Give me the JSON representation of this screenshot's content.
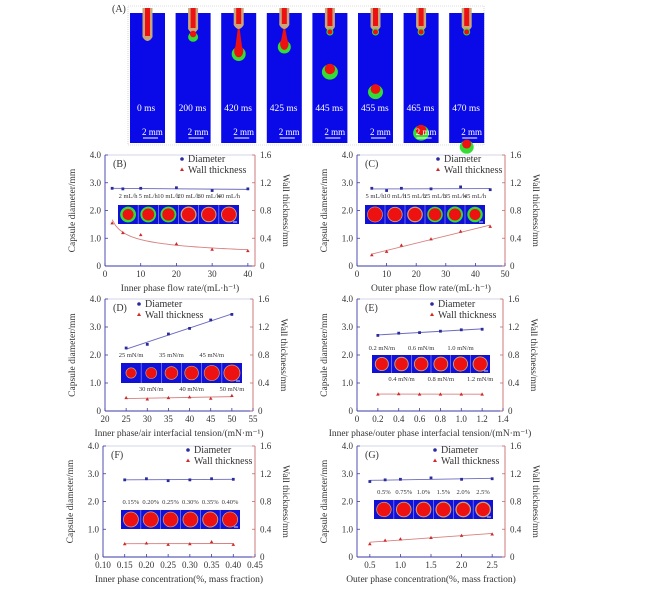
{
  "panel_a": {
    "label": "(A)",
    "frame_color": "#0a0ae8",
    "frames": [
      {
        "time": "0 ms",
        "scale": "2 mm"
      },
      {
        "time": "200 ms",
        "scale": "2 mm"
      },
      {
        "time": "420 ms",
        "scale": "2 mm"
      },
      {
        "time": "425 ms",
        "scale": "2 mm"
      },
      {
        "time": "445 ms",
        "scale": "2 mm"
      },
      {
        "time": "455 ms",
        "scale": "2 mm"
      },
      {
        "time": "465 ms",
        "scale": "2 mm"
      },
      {
        "time": "470 ms",
        "scale": "2 mm"
      }
    ]
  },
  "colors": {
    "diameter": "#2b2b9c",
    "diameter_line": "#6a6ac0",
    "wall": "#d02a2a",
    "wall_line": "#d88080",
    "left_axis": "#3a3aa8",
    "right_axis": "#c86a6a",
    "inset_bg": "#1010d8",
    "core": "#ee1111",
    "shell_green": "#33dd33",
    "shell_beige": "#c9a67a"
  },
  "chart_data": [
    {
      "id": "B",
      "type": "scatter",
      "panel_label": "(B)",
      "xlabel": "Inner phase flow rate/(mL·h⁻¹)",
      "ylabel": "Capsule diameter/mm",
      "y2label": "Wall thickness/mm",
      "xlim": [
        0,
        42
      ],
      "xticks": [
        "0",
        "10",
        "20",
        "30",
        "40"
      ],
      "xtick_values": [
        0,
        10,
        20,
        30,
        40
      ],
      "ylim": [
        0,
        4
      ],
      "yticks": [
        "0",
        "1.0",
        "2.0",
        "3.0",
        "4.0"
      ],
      "y2lim": [
        0,
        1.6
      ],
      "y2ticks": [
        "0",
        "0.4",
        "0.8",
        "1.2",
        "1.6"
      ],
      "legend": [
        "Diameter",
        "Wall thickness"
      ],
      "legend_position": "top-right",
      "x": [
        2,
        5,
        10,
        20,
        30,
        40
      ],
      "series": [
        {
          "name": "Diameter",
          "axis": "left",
          "values": [
            2.8,
            2.78,
            2.8,
            2.82,
            2.72,
            2.78
          ],
          "trend": "linear"
        },
        {
          "name": "Wall thickness",
          "axis": "right",
          "values": [
            0.62,
            0.48,
            0.45,
            0.32,
            0.24,
            0.22
          ],
          "trend": "power"
        }
      ],
      "inset_labels_top": [
        "2 mL/h",
        "5 mL/h",
        "10 mL/h",
        "20 mL/h",
        "30 mL/h",
        "40 mL/h"
      ],
      "inset_labels_bottom": []
    },
    {
      "id": "C",
      "type": "scatter",
      "panel_label": "(C)",
      "xlabel": "Outer phase flow rate/(mL·h⁻¹)",
      "ylabel": "Capsule diameter/mm",
      "y2label": "Wall thickness/mm",
      "xlim": [
        0,
        50
      ],
      "xticks": [
        "0",
        "10",
        "20",
        "30",
        "40",
        "50"
      ],
      "xtick_values": [
        0,
        10,
        20,
        30,
        40,
        50
      ],
      "ylim": [
        0,
        4
      ],
      "yticks": [
        "0",
        "1.0",
        "2.0",
        "3.0",
        "4.0"
      ],
      "y2lim": [
        0,
        1.6
      ],
      "y2ticks": [
        "0",
        "0.4",
        "0.8",
        "1.2",
        "1.6"
      ],
      "legend": [
        "Diameter",
        "Wall thickness"
      ],
      "legend_position": "top-right",
      "x": [
        5,
        10,
        15,
        25,
        35,
        45
      ],
      "series": [
        {
          "name": "Diameter",
          "axis": "left",
          "values": [
            2.8,
            2.72,
            2.8,
            2.78,
            2.85,
            2.75
          ],
          "trend": "linear"
        },
        {
          "name": "Wall thickness",
          "axis": "right",
          "values": [
            0.16,
            0.21,
            0.3,
            0.39,
            0.5,
            0.57
          ],
          "trend": "linear"
        }
      ],
      "inset_labels_top": [
        "5 mL/h",
        "10 mL/h",
        "15 mL/h",
        "25 mL/h",
        "35 mL/h",
        "45 mL/h"
      ],
      "inset_labels_bottom": []
    },
    {
      "id": "D",
      "type": "scatter",
      "panel_label": "(D)",
      "xlabel": "Inner phase/air interfacial tension/(mN·m⁻¹)",
      "ylabel": "Capsule diameter/mm",
      "y2label": "Wall thickness/mm",
      "xlim": [
        20,
        55
      ],
      "xticks": [
        "20",
        "25",
        "30",
        "35",
        "40",
        "45",
        "50",
        "55"
      ],
      "xtick_values": [
        20,
        25,
        30,
        35,
        40,
        45,
        50,
        55
      ],
      "ylim": [
        0,
        4
      ],
      "yticks": [
        "0",
        "1.0",
        "2.0",
        "3.0",
        "4.0"
      ],
      "y2lim": [
        0,
        1.6
      ],
      "y2ticks": [
        "0",
        "0.4",
        "0.8",
        "1.2",
        "1.6"
      ],
      "legend": [
        "Diameter",
        "Wall thickness"
      ],
      "legend_position": "top-left",
      "x": [
        25,
        30,
        35,
        40,
        45,
        50
      ],
      "series": [
        {
          "name": "Diameter",
          "axis": "left",
          "values": [
            2.25,
            2.38,
            2.75,
            2.95,
            3.25,
            3.45
          ],
          "trend": "linear"
        },
        {
          "name": "Wall thickness",
          "axis": "right",
          "values": [
            0.19,
            0.17,
            0.19,
            0.2,
            0.18,
            0.22
          ],
          "trend": "linear"
        }
      ],
      "inset_labels_top": [
        "25 mN/m",
        "35 mN/m",
        "45 mN/m"
      ],
      "inset_labels_bottom": [
        "30 mN/m",
        "40 mN/m",
        "50 mN/m"
      ]
    },
    {
      "id": "E",
      "type": "scatter",
      "panel_label": "(E)",
      "xlabel": "Inner phase/outer phase interfacial tension/(mN·m⁻¹)",
      "ylabel": "Capsule diameter/mm",
      "y2label": "Wall thickness/mm",
      "xlim": [
        0,
        1.4
      ],
      "xticks": [
        "0",
        "0.2",
        "0.4",
        "0.6",
        "0.8",
        "1.0",
        "1.2",
        "1.4"
      ],
      "xtick_values": [
        0,
        0.2,
        0.4,
        0.6,
        0.8,
        1.0,
        1.2,
        1.4
      ],
      "ylim": [
        0,
        4
      ],
      "yticks": [
        "0",
        "1.0",
        "2.0",
        "3.0",
        "4.0"
      ],
      "y2lim": [
        0,
        1.6
      ],
      "y2ticks": [
        "0",
        "0.4",
        "0.8",
        "1.2",
        "1.6"
      ],
      "legend": [
        "Diameter",
        "Wall thickness"
      ],
      "legend_position": "top-right",
      "x": [
        0.2,
        0.4,
        0.6,
        0.8,
        1.0,
        1.2
      ],
      "series": [
        {
          "name": "Diameter",
          "axis": "left",
          "values": [
            2.7,
            2.78,
            2.8,
            2.85,
            2.9,
            2.92
          ],
          "trend": "linear"
        },
        {
          "name": "Wall thickness",
          "axis": "right",
          "values": [
            0.24,
            0.245,
            0.24,
            0.24,
            0.24,
            0.24
          ],
          "trend": "linear"
        }
      ],
      "inset_labels_top": [
        "0.2 mN/m",
        "0.6 mN/m",
        "1.0 mN/m"
      ],
      "inset_labels_bottom": [
        "0.4 mN/m",
        "0.8 mN/m",
        "1.2 mN/m"
      ]
    },
    {
      "id": "F",
      "type": "scatter",
      "panel_label": "(F)",
      "xlabel": "Inner phase concentration(%, mass fraction)",
      "ylabel": "Capsule diameter/mm",
      "y2label": "Wall thickness/mm",
      "xlim": [
        0.1,
        0.45
      ],
      "xticks": [
        "0.10",
        "0.15",
        "0.20",
        "0.25",
        "0.30",
        "0.35",
        "0.40",
        "0.45"
      ],
      "xtick_values": [
        0.1,
        0.15,
        0.2,
        0.25,
        0.3,
        0.35,
        0.4,
        0.45
      ],
      "ylim": [
        0,
        4
      ],
      "yticks": [
        "0",
        "1.0",
        "2.0",
        "3.0",
        "4.0"
      ],
      "y2lim": [
        0,
        1.6
      ],
      "y2ticks": [
        "0",
        "0.4",
        "0.8",
        "1.2",
        "1.6"
      ],
      "legend": [
        "Diameter",
        "Wall thickness"
      ],
      "legend_position": "top-right",
      "x": [
        0.15,
        0.2,
        0.25,
        0.3,
        0.35,
        0.4
      ],
      "series": [
        {
          "name": "Diameter",
          "axis": "left",
          "values": [
            2.78,
            2.82,
            2.75,
            2.78,
            2.82,
            2.8
          ],
          "trend": "linear"
        },
        {
          "name": "Wall thickness",
          "axis": "right",
          "values": [
            0.19,
            0.2,
            0.18,
            0.19,
            0.22,
            0.18
          ],
          "trend": "linear"
        }
      ],
      "inset_labels_top": [
        "0.15%",
        "0.20%",
        "0.25%",
        "0.30%",
        "0.35%",
        "0.40%"
      ],
      "inset_labels_bottom": []
    },
    {
      "id": "G",
      "type": "scatter",
      "panel_label": "(G)",
      "xlabel": "Outer phase concentration(%, mass fraction)",
      "ylabel": "Capsule diameter/mm",
      "y2label": "Wall thickness/mm",
      "xlim": [
        0.29,
        2.71
      ],
      "xticks": [
        "0.5",
        "1.0",
        "1.5",
        "2.0",
        "2.5"
      ],
      "xtick_values": [
        0.5,
        1.0,
        1.5,
        2.0,
        2.5
      ],
      "ylim": [
        0,
        4
      ],
      "yticks": [
        "0",
        "1.0",
        "2.0",
        "3.0",
        "4.0"
      ],
      "y2lim": [
        0,
        1.6
      ],
      "y2ticks": [
        "0",
        "0.4",
        "0.8",
        "1.2",
        "1.6"
      ],
      "legend": [
        "Diameter",
        "Wall thickness"
      ],
      "legend_position": "top-right",
      "x": [
        0.5,
        0.75,
        1.0,
        1.5,
        2.0,
        2.5
      ],
      "series": [
        {
          "name": "Diameter",
          "axis": "left",
          "values": [
            2.72,
            2.78,
            2.8,
            2.85,
            2.8,
            2.82
          ],
          "trend": "linear"
        },
        {
          "name": "Wall thickness",
          "axis": "right",
          "values": [
            0.19,
            0.24,
            0.26,
            0.28,
            0.31,
            0.33
          ],
          "trend": "linear"
        }
      ],
      "inset_labels_top": [
        "0.5%",
        "0.75%",
        "1.0%",
        "1.5%",
        "2.0%",
        "2.5%"
      ],
      "inset_labels_bottom": []
    }
  ]
}
